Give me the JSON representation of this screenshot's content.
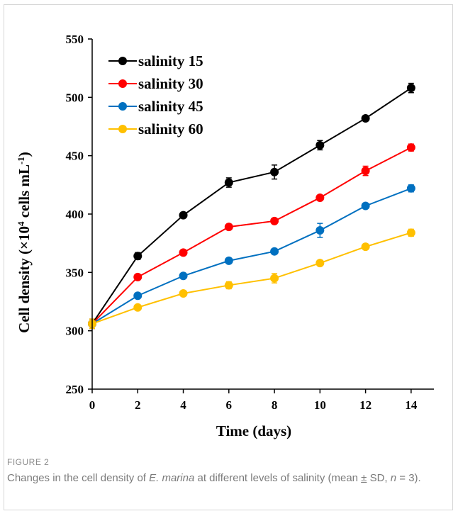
{
  "figure": {
    "label": "FIGURE 2",
    "caption": {
      "part1": "Changes in the cell density of ",
      "species": "E. marina",
      "part2": " at different levels of salinity (mean ",
      "pm": "±",
      "part3": " SD, ",
      "n_symbol": "n",
      "part4": " = 3)."
    }
  },
  "chart_data": {
    "type": "line",
    "xlabel": "Time (days)",
    "ylabel_parts": {
      "before": "Cell density (×10",
      "sup1": "4",
      "middle": " cells mL",
      "sup2": "-1",
      "after": ")"
    },
    "x": [
      0,
      2,
      4,
      6,
      8,
      10,
      12,
      14
    ],
    "xlim": [
      0,
      15
    ],
    "ylim": [
      250,
      550
    ],
    "xticks": [
      "0",
      "2",
      "4",
      "6",
      "8",
      "10",
      "12",
      "14"
    ],
    "yticks": [
      "250",
      "300",
      "350",
      "400",
      "450",
      "500",
      "550"
    ],
    "legend_position": "top-left",
    "series": [
      {
        "name": "salinity 15",
        "color": "#000000",
        "values": [
          306,
          364,
          399,
          427,
          436,
          459,
          482,
          508
        ],
        "errors": [
          4,
          3,
          2,
          4,
          6,
          4,
          2,
          4
        ]
      },
      {
        "name": "salinity 30",
        "color": "#ff0000",
        "values": [
          306,
          346,
          367,
          389,
          394,
          414,
          437,
          457
        ],
        "errors": [
          4,
          2,
          2,
          2,
          2,
          2,
          4,
          3
        ]
      },
      {
        "name": "salinity 45",
        "color": "#0070c0",
        "values": [
          306,
          330,
          347,
          360,
          368,
          386,
          407,
          422
        ],
        "errors": [
          4,
          2,
          2,
          2,
          2,
          6,
          2,
          3
        ]
      },
      {
        "name": "salinity 60",
        "color": "#ffc000",
        "values": [
          306,
          320,
          332,
          339,
          345,
          358,
          372,
          384
        ],
        "errors": [
          4,
          2,
          2,
          3,
          4,
          2,
          2,
          3
        ]
      }
    ]
  }
}
